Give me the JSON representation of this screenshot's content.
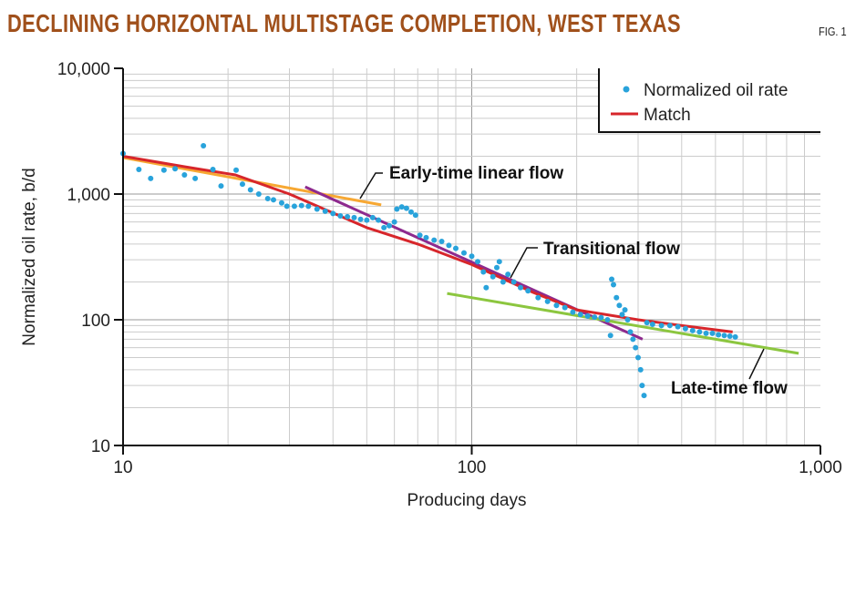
{
  "chart_data": {
    "type": "scatter",
    "title": "DECLINING HORIZONTAL MULTISTAGE COMPLETION, WEST TEXAS",
    "figure_label": "FIG. 1",
    "xlabel": "Producing days",
    "ylabel": "Normalized oil rate, b/d",
    "xscale": "log",
    "yscale": "log",
    "xlim": [
      10,
      1000
    ],
    "ylim": [
      10,
      10000
    ],
    "xticks": [
      {
        "v": 10,
        "label": "10"
      },
      {
        "v": 100,
        "label": "100"
      },
      {
        "v": 1000,
        "label": "1,000"
      }
    ],
    "yticks": [
      {
        "v": 10,
        "label": "10"
      },
      {
        "v": 100,
        "label": "100"
      },
      {
        "v": 1000,
        "label": "1,000"
      },
      {
        "v": 10000,
        "label": "10,000"
      }
    ],
    "grid": true,
    "legend": {
      "position": "top-right",
      "entries": [
        {
          "label": "Normalized oil rate",
          "color": "#29a3db",
          "kind": "dot"
        },
        {
          "label": "Match",
          "color": "#d7262b",
          "kind": "line"
        }
      ]
    },
    "series": [
      {
        "name": "Normalized oil rate",
        "kind": "scatter",
        "color": "#29a3db",
        "points": [
          [
            10,
            2100
          ],
          [
            11.1,
            1570
          ],
          [
            12,
            1330
          ],
          [
            13.1,
            1550
          ],
          [
            14.1,
            1590
          ],
          [
            15,
            1420
          ],
          [
            16.1,
            1330
          ],
          [
            17,
            2420
          ],
          [
            18.1,
            1570
          ],
          [
            19.1,
            1160
          ],
          [
            21.1,
            1550
          ],
          [
            22,
            1200
          ],
          [
            23.2,
            1080
          ],
          [
            24.5,
            1000
          ],
          [
            26,
            920
          ],
          [
            27,
            900
          ],
          [
            28.5,
            850
          ],
          [
            29.5,
            800
          ],
          [
            31,
            800
          ],
          [
            32.5,
            810
          ],
          [
            34,
            800
          ],
          [
            36,
            760
          ],
          [
            38,
            730
          ],
          [
            40,
            700
          ],
          [
            42,
            670
          ],
          [
            44,
            660
          ],
          [
            46,
            650
          ],
          [
            48,
            630
          ],
          [
            50,
            620
          ],
          [
            52,
            650
          ],
          [
            54,
            620
          ],
          [
            56,
            540
          ],
          [
            58,
            560
          ],
          [
            60,
            600
          ],
          [
            61,
            760
          ],
          [
            63,
            790
          ],
          [
            65,
            770
          ],
          [
            67,
            720
          ],
          [
            69,
            680
          ],
          [
            71,
            470
          ],
          [
            74,
            450
          ],
          [
            78,
            430
          ],
          [
            82,
            420
          ],
          [
            86,
            390
          ],
          [
            90,
            370
          ],
          [
            95,
            340
          ],
          [
            100,
            320
          ],
          [
            104,
            290
          ],
          [
            108,
            240
          ],
          [
            110,
            180
          ],
          [
            115,
            220
          ],
          [
            118,
            260
          ],
          [
            120,
            290
          ],
          [
            123,
            200
          ],
          [
            127,
            230
          ],
          [
            132,
            200
          ],
          [
            138,
            180
          ],
          [
            145,
            170
          ],
          [
            155,
            150
          ],
          [
            165,
            140
          ],
          [
            175,
            130
          ],
          [
            185,
            125
          ],
          [
            195,
            115
          ],
          [
            205,
            110
          ],
          [
            215,
            107
          ],
          [
            225,
            105
          ],
          [
            235,
            104
          ],
          [
            245,
            100
          ],
          [
            250,
            75
          ],
          [
            252,
            210
          ],
          [
            255,
            190
          ],
          [
            260,
            150
          ],
          [
            265,
            130
          ],
          [
            270,
            110
          ],
          [
            275,
            120
          ],
          [
            280,
            100
          ],
          [
            285,
            80
          ],
          [
            290,
            70
          ],
          [
            295,
            60
          ],
          [
            300,
            50
          ],
          [
            305,
            40
          ],
          [
            308,
            30
          ],
          [
            312,
            25
          ],
          [
            318,
            95
          ],
          [
            330,
            92
          ],
          [
            350,
            90
          ],
          [
            370,
            90
          ],
          [
            390,
            88
          ],
          [
            410,
            85
          ],
          [
            430,
            82
          ],
          [
            450,
            80
          ],
          [
            470,
            78
          ],
          [
            490,
            78
          ],
          [
            510,
            76
          ],
          [
            530,
            75
          ],
          [
            550,
            74
          ],
          [
            570,
            73
          ]
        ]
      },
      {
        "name": "Match",
        "kind": "line",
        "color": "#d7262b",
        "points": [
          [
            10,
            2000
          ],
          [
            15,
            1650
          ],
          [
            21,
            1420
          ],
          [
            30,
            1000
          ],
          [
            50,
            540
          ],
          [
            70,
            400
          ],
          [
            100,
            275
          ],
          [
            150,
            165
          ],
          [
            200,
            120
          ],
          [
            300,
            100
          ],
          [
            400,
            90
          ],
          [
            560,
            80
          ]
        ]
      },
      {
        "kind": "line",
        "color": "#f7a833",
        "points": [
          [
            10,
            1950
          ],
          [
            55,
            820
          ]
        ]
      },
      {
        "kind": "line",
        "color": "#8e2a8e",
        "points": [
          [
            33.3,
            1140
          ],
          [
            309,
            70
          ]
        ]
      },
      {
        "kind": "line",
        "color": "#8cc63f",
        "points": [
          [
            85,
            162
          ],
          [
            866,
            54
          ]
        ]
      }
    ],
    "annotations": [
      {
        "text": "Early-time linear flow",
        "at": [
          52,
          850
        ]
      },
      {
        "text": "Transitional flow",
        "at": [
          125,
          200
        ]
      },
      {
        "text": "Late-time flow",
        "at": [
          720,
          58
        ]
      }
    ]
  }
}
